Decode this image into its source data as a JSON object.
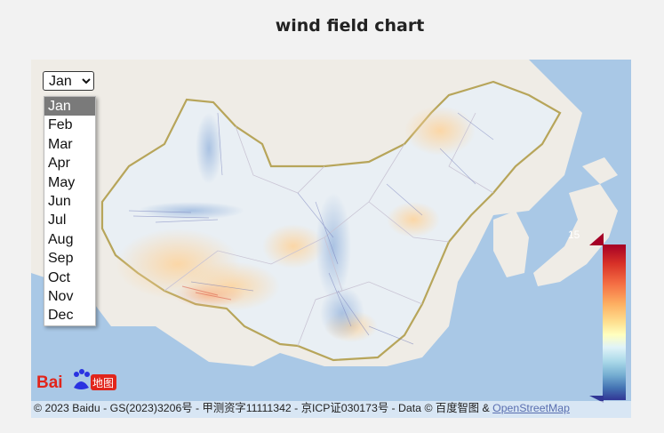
{
  "title": "wind field chart",
  "month_select": {
    "selected": "Jan",
    "options": [
      "Jan",
      "Feb",
      "Mar",
      "Apr",
      "May",
      "Jun",
      "Jul",
      "Aug",
      "Sep",
      "Oct",
      "Nov",
      "Dec"
    ]
  },
  "legend": {
    "max_label": "15",
    "colors": [
      "#a50026",
      "#d73027",
      "#f46d43",
      "#fdae61",
      "#fee090",
      "#ffffbf",
      "#e0f3f8",
      "#abd9e9",
      "#74add1",
      "#4575b4",
      "#313695"
    ]
  },
  "map": {
    "logo_text_left": "Bai",
    "logo_text_right": "地图",
    "attribution_text": "© 2023 Baidu - GS(2023)3206号 - 甲测资字11111342 - 京ICP证030173号 - Data © 百度智图 & ",
    "attribution_link": "OpenStreetMap"
  }
}
